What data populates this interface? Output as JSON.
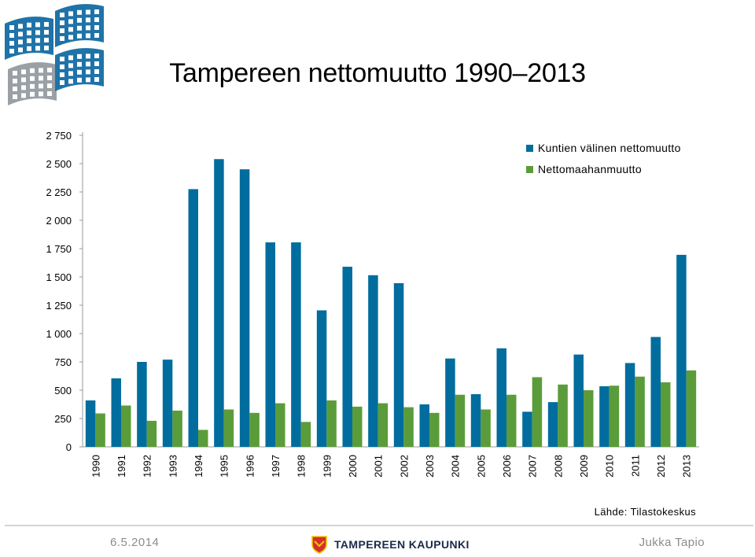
{
  "colors": {
    "kuntien": "#006d9e",
    "netto": "#5b9c3a",
    "logo_blue": "#1e73a8",
    "logo_gray": "#9aa0a6",
    "crest_red": "#d32f2f",
    "crest_yellow": "#f2c300"
  },
  "header": {
    "title": "Tampereen nettomuutto 1990–2013"
  },
  "chart_data": {
    "type": "bar",
    "title": "Tampereen nettomuutto 1990–2013",
    "xlabel": "",
    "ylabel": "",
    "ylim": [
      0,
      2750
    ],
    "y_ticks": [
      0,
      250,
      500,
      750,
      1000,
      1250,
      1500,
      1750,
      2000,
      2250,
      2500,
      2750
    ],
    "y_tick_labels": [
      "0",
      "250",
      "500",
      "750",
      "1 000",
      "1 250",
      "1 500",
      "1 750",
      "2 000",
      "2 250",
      "2 500",
      "2 750"
    ],
    "grid": false,
    "legend_position": "top-right",
    "categories": [
      "1990",
      "1991",
      "1992",
      "1993",
      "1994",
      "1995",
      "1996",
      "1997",
      "1998",
      "1999",
      "2000",
      "2001",
      "2002",
      "2003",
      "2004",
      "2005",
      "2006",
      "2007",
      "2008",
      "2009",
      "2010",
      "2011",
      "2012",
      "2013"
    ],
    "series": [
      {
        "name": "Kuntien välinen nettomuutto",
        "color": "#006d9e",
        "values": [
          410,
          605,
          750,
          770,
          2275,
          2540,
          2450,
          1805,
          1805,
          1205,
          1590,
          1515,
          1445,
          375,
          780,
          465,
          870,
          310,
          395,
          815,
          535,
          740,
          970,
          1695
        ]
      },
      {
        "name": "Nettomaahanmuutto",
        "color": "#5b9c3a",
        "values": [
          295,
          365,
          230,
          320,
          150,
          330,
          300,
          385,
          220,
          410,
          355,
          385,
          350,
          300,
          460,
          330,
          460,
          615,
          550,
          500,
          540,
          620,
          570,
          675
        ]
      }
    ]
  },
  "footer": {
    "source": "Lähde: Tilastokeskus",
    "date": "6.5.2014",
    "brand": "TAMPEREEN KAUPUNKI",
    "author": "Jukka Tapio"
  }
}
